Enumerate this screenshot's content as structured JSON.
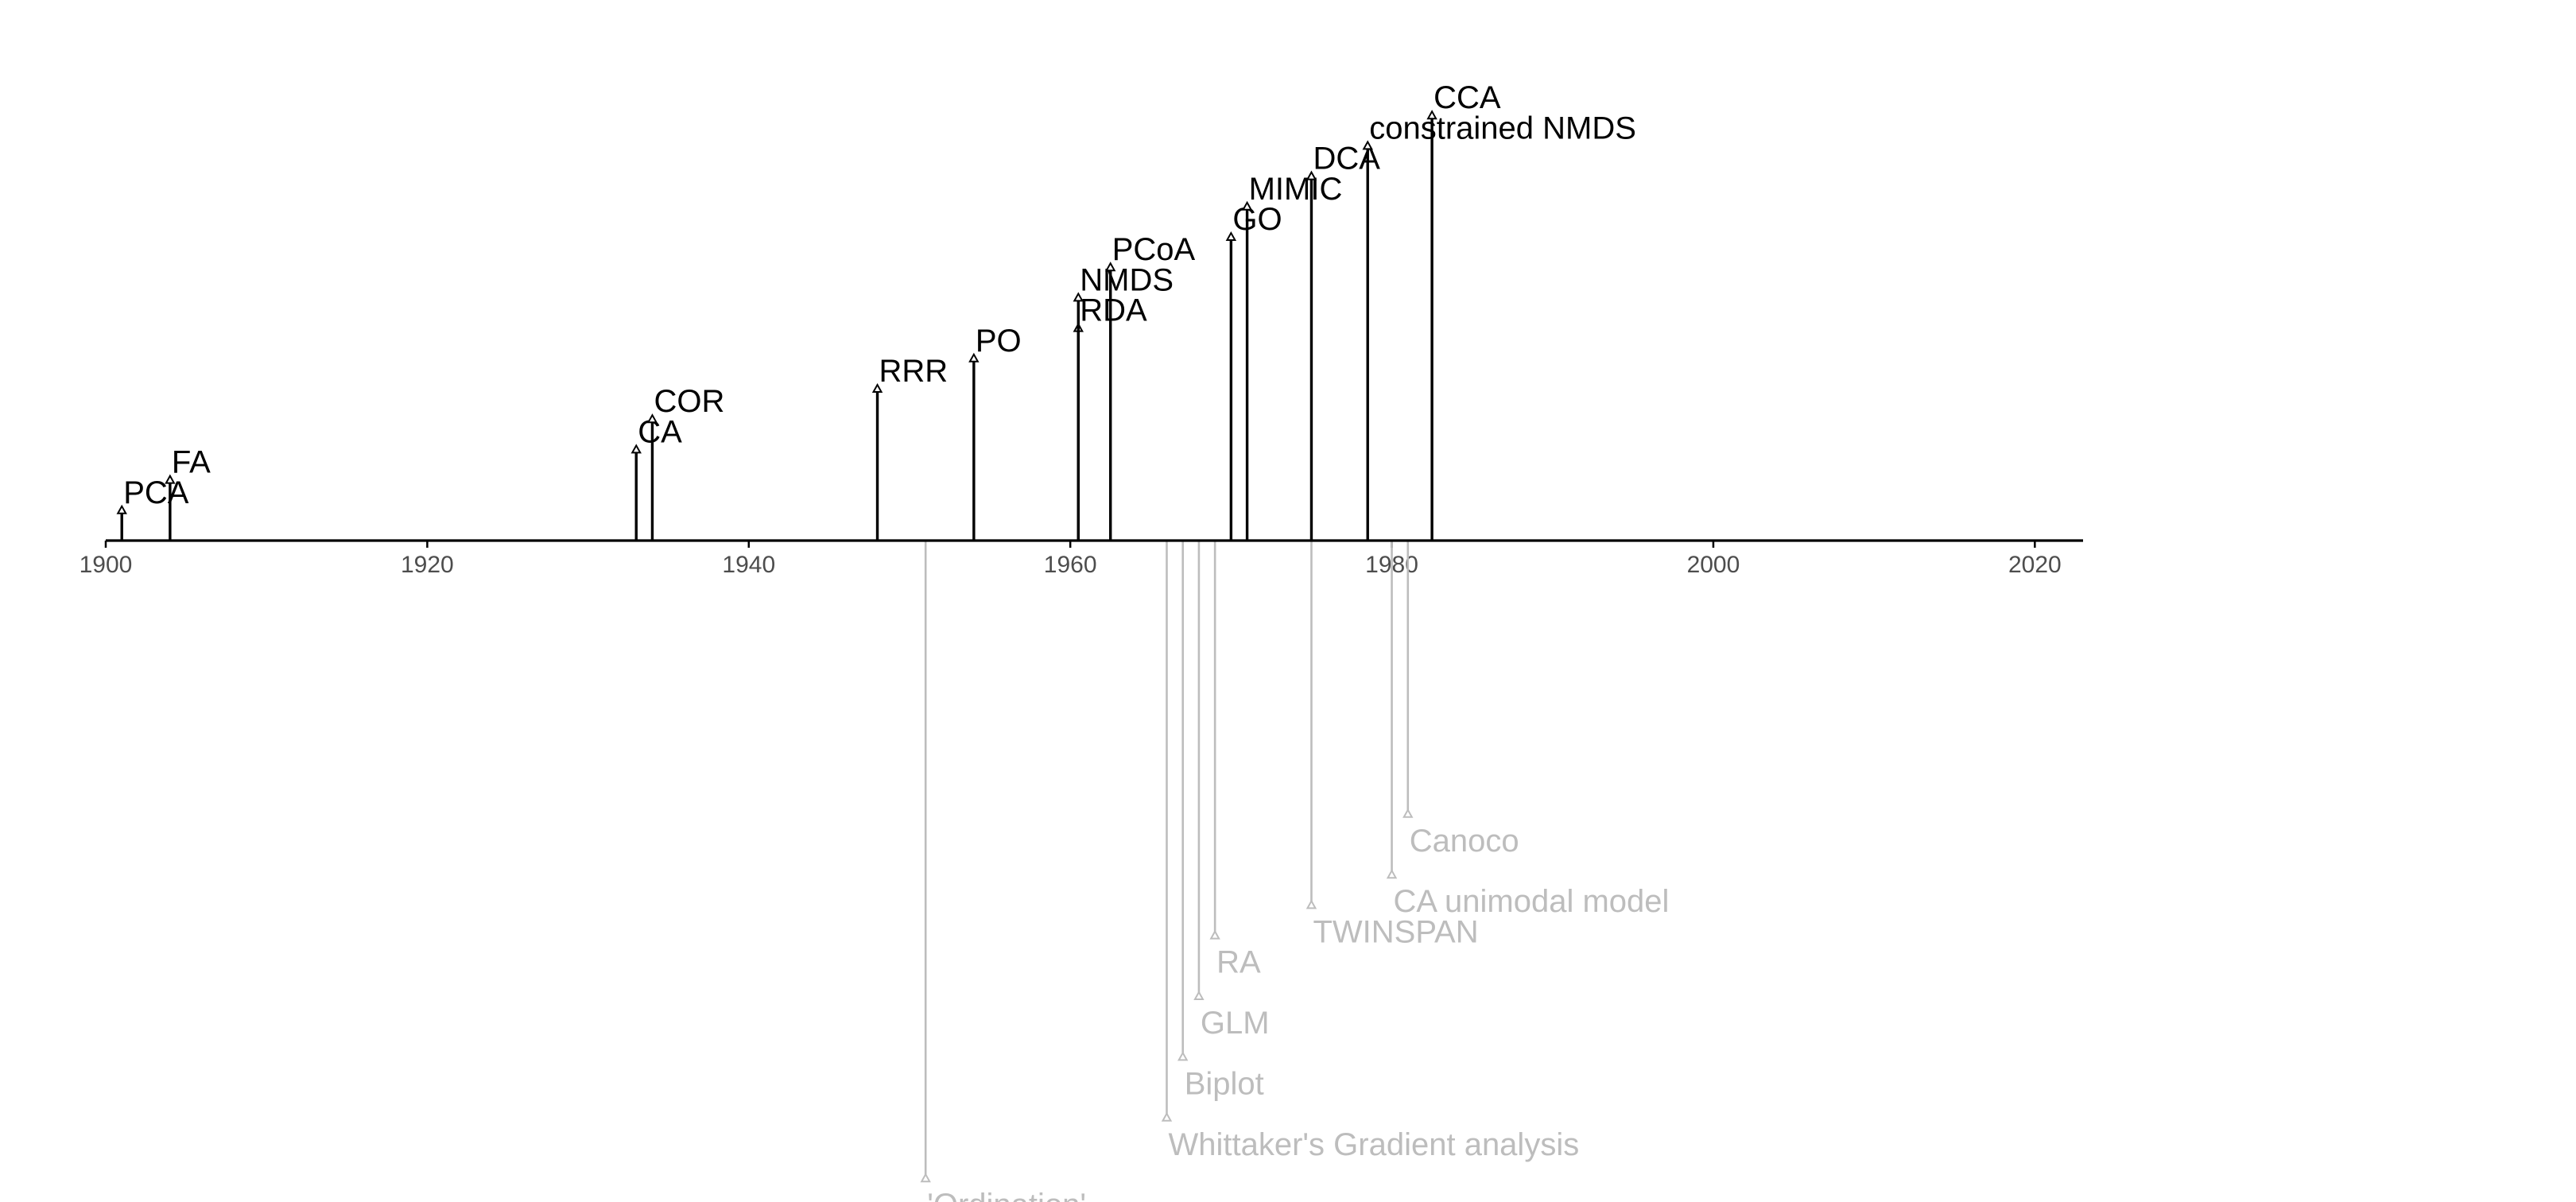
{
  "chart_data": {
    "type": "timeline",
    "title": "",
    "xlabel": "",
    "ylabel": "",
    "xlim": [
      1900,
      2023
    ],
    "x_ticks": [
      1900,
      1920,
      1940,
      1960,
      1980,
      2000,
      2020
    ],
    "colors": {
      "methods": "#000000",
      "software_and_concepts": "#bdbdbd",
      "axis": "#000000",
      "tick_text": "#4d4d4d"
    },
    "series": [
      {
        "side": "above",
        "color": "#000000",
        "events": [
          {
            "label": "PCA",
            "year": 1901,
            "level": 1
          },
          {
            "label": "FA",
            "year": 1904,
            "level": 2
          },
          {
            "label": "CA",
            "year": 1933,
            "level": 3
          },
          {
            "label": "COR",
            "year": 1934,
            "level": 4
          },
          {
            "label": "RRR",
            "year": 1948,
            "level": 5
          },
          {
            "label": "PO",
            "year": 1954,
            "level": 6
          },
          {
            "label": "RDA",
            "year": 1960.5,
            "level": 7
          },
          {
            "label": "NMDS",
            "year": 1960.5,
            "level": 8
          },
          {
            "label": "PCoA",
            "year": 1962.5,
            "level": 9
          },
          {
            "label": "GO",
            "year": 1970,
            "level": 10
          },
          {
            "label": "MIMIC",
            "year": 1971,
            "level": 11
          },
          {
            "label": "DCA",
            "year": 1975,
            "level": 12
          },
          {
            "label": "constrained NMDS",
            "year": 1978.5,
            "level": 13
          },
          {
            "label": "CCA",
            "year": 1982.5,
            "level": 14
          }
        ]
      },
      {
        "side": "below",
        "color": "#bdbdbd",
        "events": [
          {
            "label": "Canoco",
            "year": 1981,
            "level": 9
          },
          {
            "label": "CA unimodal model",
            "year": 1980,
            "level": 11
          },
          {
            "label": "TWINSPAN",
            "year": 1975,
            "level": 12
          },
          {
            "label": "RA",
            "year": 1969,
            "level": 13
          },
          {
            "label": "GLM",
            "year": 1968,
            "level": 15
          },
          {
            "label": "Biplot",
            "year": 1967,
            "level": 17
          },
          {
            "label": "Whittaker's Gradient analysis",
            "year": 1966,
            "level": 19
          },
          {
            "label": "'Ordination'",
            "year": 1951,
            "level": 21
          }
        ]
      }
    ]
  }
}
